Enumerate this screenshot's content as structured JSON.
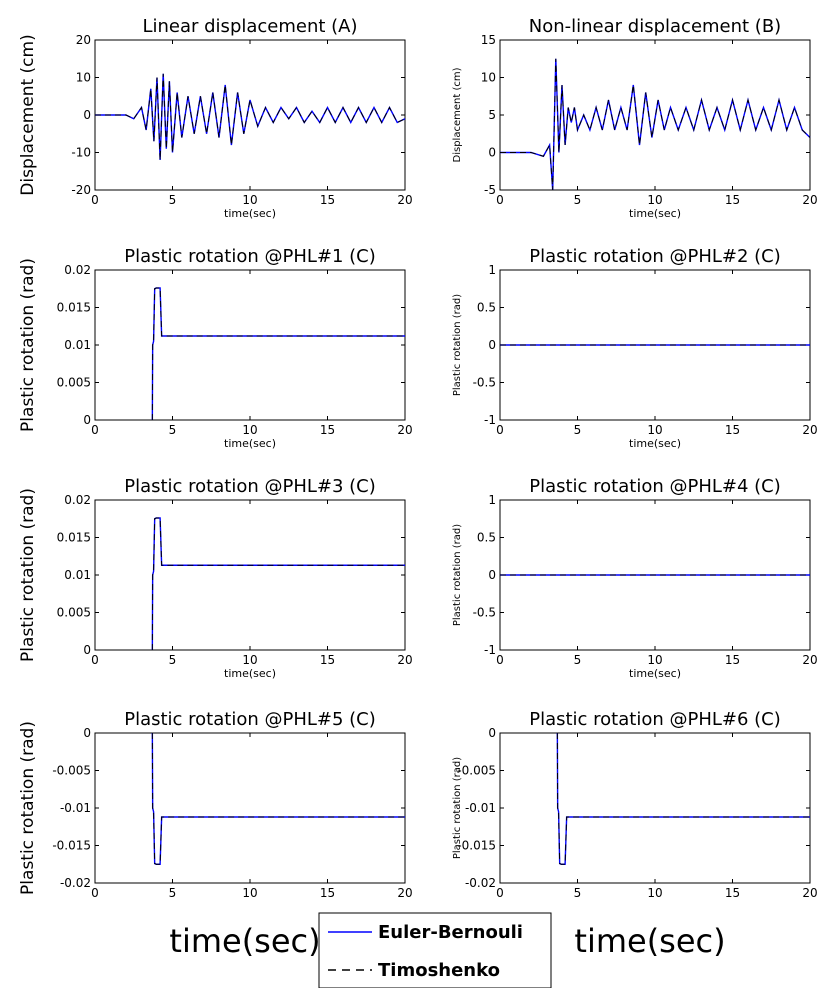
{
  "figure": {
    "bottom_xlabel_left": "time(sec)",
    "bottom_xlabel_right": "time(sec)"
  },
  "legend": {
    "entries": [
      {
        "name": "Euler-Bernouli",
        "color": "#0000ff",
        "style": "solid"
      },
      {
        "name": "Timoshenko",
        "color": "#000000",
        "style": "dashed"
      }
    ]
  },
  "chart_data": [
    {
      "type": "line",
      "title": "Linear displacement (A)",
      "xlabel": "time(sec)",
      "ylabel": "Displacement (cm)",
      "xlim": [
        0,
        20
      ],
      "ylim": [
        -20,
        20
      ],
      "xticks": [
        0,
        5,
        10,
        15,
        20
      ],
      "yticks": [
        -20,
        -10,
        0,
        10,
        20
      ],
      "xtick_labels": [
        "0",
        "5",
        "10",
        "15",
        "20"
      ],
      "ytick_labels": [
        "-20",
        "-10",
        "0",
        "10",
        "20"
      ],
      "series": [
        {
          "name": "Euler-Bernouli",
          "x": [
            0,
            1,
            2,
            2.5,
            3,
            3.3,
            3.6,
            3.8,
            4.0,
            4.2,
            4.4,
            4.6,
            4.8,
            5.0,
            5.3,
            5.6,
            6.0,
            6.4,
            6.8,
            7.2,
            7.6,
            8.0,
            8.4,
            8.8,
            9.2,
            9.6,
            10.0,
            10.5,
            11,
            11.5,
            12,
            12.5,
            13,
            13.5,
            14,
            14.5,
            15,
            15.5,
            16,
            16.5,
            17,
            17.5,
            18,
            18.5,
            19,
            19.5,
            20
          ],
          "y": [
            0,
            0,
            0,
            -1,
            2,
            -4,
            7,
            -7,
            10,
            -12,
            11,
            -9,
            9,
            -10,
            6,
            -6,
            5,
            -5,
            5,
            -5,
            6,
            -6,
            8,
            -8,
            6,
            -5,
            4,
            -3,
            2,
            -2,
            2,
            -1,
            2,
            -2,
            1,
            -2,
            2,
            -2,
            2,
            -2,
            2,
            -2,
            2,
            -2,
            2,
            -2,
            -1
          ]
        },
        {
          "name": "Timoshenko",
          "x": [
            0,
            1,
            2,
            2.5,
            3,
            3.3,
            3.6,
            3.8,
            4.0,
            4.2,
            4.4,
            4.6,
            4.8,
            5.0,
            5.3,
            5.6,
            6.0,
            6.4,
            6.8,
            7.2,
            7.6,
            8.0,
            8.4,
            8.8,
            9.2,
            9.6,
            10.0,
            10.5,
            11,
            11.5,
            12,
            12.5,
            13,
            13.5,
            14,
            14.5,
            15,
            15.5,
            16,
            16.5,
            17,
            17.5,
            18,
            18.5,
            19,
            19.5,
            20
          ],
          "y": [
            0,
            0,
            0,
            -1,
            2,
            -4,
            7,
            -7,
            10,
            -12,
            11,
            -9,
            9,
            -10,
            6,
            -6,
            5,
            -5,
            5,
            -5,
            6,
            -6,
            8,
            -8,
            6,
            -5,
            4,
            -3,
            2,
            -2,
            2,
            -1,
            2,
            -2,
            1,
            -2,
            2,
            -2,
            2,
            -2,
            2,
            -2,
            2,
            -2,
            2,
            -2,
            -1
          ]
        }
      ]
    },
    {
      "type": "line",
      "title": "Non-linear displacement (B)",
      "xlabel": "time(sec)",
      "ylabel": "Displacement (cm)",
      "xlim": [
        0,
        20
      ],
      "ylim": [
        -5,
        15
      ],
      "xticks": [
        0,
        5,
        10,
        15,
        20
      ],
      "yticks": [
        -5,
        0,
        5,
        10,
        15
      ],
      "xtick_labels": [
        "0",
        "5",
        "10",
        "15",
        "20"
      ],
      "ytick_labels": [
        "-5",
        "0",
        "5",
        "10",
        "15"
      ],
      "series": [
        {
          "name": "Euler-Bernouli",
          "x": [
            0,
            1,
            2,
            2.8,
            3.2,
            3.4,
            3.6,
            3.8,
            4.0,
            4.2,
            4.4,
            4.6,
            4.8,
            5.0,
            5.4,
            5.8,
            6.2,
            6.6,
            7.0,
            7.4,
            7.8,
            8.2,
            8.6,
            9.0,
            9.4,
            9.8,
            10.2,
            10.6,
            11,
            11.5,
            12,
            12.5,
            13,
            13.5,
            14,
            14.5,
            15,
            15.5,
            16,
            16.5,
            17,
            17.5,
            18,
            18.5,
            19,
            19.5,
            20
          ],
          "y": [
            0,
            0,
            0,
            -0.5,
            1,
            -5,
            12.5,
            0,
            9,
            1,
            6,
            4,
            6,
            3,
            5,
            3,
            6,
            3,
            7,
            3,
            6,
            3,
            9,
            1,
            8,
            2,
            7,
            3,
            6,
            3,
            6,
            3,
            7,
            3,
            6,
            3,
            7,
            3,
            7,
            3,
            6,
            3,
            7,
            3,
            6,
            3,
            2
          ]
        },
        {
          "name": "Timoshenko",
          "x": [
            0,
            1,
            2,
            2.8,
            3.2,
            3.4,
            3.6,
            3.8,
            4.0,
            4.2,
            4.4,
            4.6,
            4.8,
            5.0,
            5.4,
            5.8,
            6.2,
            6.6,
            7.0,
            7.4,
            7.8,
            8.2,
            8.6,
            9.0,
            9.4,
            9.8,
            10.2,
            10.6,
            11,
            11.5,
            12,
            12.5,
            13,
            13.5,
            14,
            14.5,
            15,
            15.5,
            16,
            16.5,
            17,
            17.5,
            18,
            18.5,
            19,
            19.5,
            20
          ],
          "y": [
            0,
            0,
            0,
            -0.5,
            1,
            -5,
            12.5,
            0,
            9,
            1,
            6,
            4,
            6,
            3,
            5,
            3,
            6,
            3,
            7,
            3,
            6,
            3,
            9,
            1,
            8,
            2,
            7,
            3,
            6,
            3,
            6,
            3,
            7,
            3,
            6,
            3,
            7,
            3,
            7,
            3,
            6,
            3,
            7,
            3,
            6,
            3,
            2
          ]
        }
      ]
    },
    {
      "type": "line",
      "title": "Plastic rotation @PHL#1 (C)",
      "xlabel": "time(sec)",
      "ylabel": "Plastic rotation (rad)",
      "xlim": [
        0,
        20
      ],
      "ylim": [
        0,
        0.02
      ],
      "xticks": [
        0,
        5,
        10,
        15,
        20
      ],
      "yticks": [
        0,
        0.005,
        0.01,
        0.015,
        0.02
      ],
      "xtick_labels": [
        "0",
        "5",
        "10",
        "15",
        "20"
      ],
      "ytick_labels": [
        "0",
        "0.005",
        "0.01",
        "0.015",
        "0.02"
      ],
      "series": [
        {
          "name": "Euler-Bernouli",
          "x": [
            3.7,
            3.72,
            3.78,
            3.85,
            3.95,
            4.2,
            4.3,
            4.4,
            20
          ],
          "y": [
            0,
            0.01,
            0.0105,
            0.0175,
            0.0176,
            0.0176,
            0.0112,
            0.0112,
            0.0112
          ]
        },
        {
          "name": "Timoshenko",
          "x": [
            3.7,
            3.72,
            3.78,
            3.85,
            3.95,
            4.2,
            4.3,
            4.4,
            20
          ],
          "y": [
            0,
            0.01,
            0.0105,
            0.0175,
            0.0176,
            0.0176,
            0.0112,
            0.0112,
            0.0112
          ]
        }
      ]
    },
    {
      "type": "line",
      "title": "Plastic rotation @PHL#2 (C)",
      "xlabel": "time(sec)",
      "ylabel": "Plastic rotation (rad)",
      "xlim": [
        0,
        20
      ],
      "ylim": [
        -1,
        1
      ],
      "xticks": [
        0,
        5,
        10,
        15,
        20
      ],
      "yticks": [
        -1,
        -0.5,
        0,
        0.5,
        1
      ],
      "xtick_labels": [
        "0",
        "5",
        "10",
        "15",
        "20"
      ],
      "ytick_labels": [
        "-1",
        "-0.5",
        "0",
        "0.5",
        "1"
      ],
      "series": [
        {
          "name": "Euler-Bernouli",
          "x": [
            0,
            20
          ],
          "y": [
            0,
            0
          ]
        },
        {
          "name": "Timoshenko",
          "x": [
            0,
            20
          ],
          "y": [
            0,
            0
          ]
        }
      ]
    },
    {
      "type": "line",
      "title": "Plastic rotation @PHL#3 (C)",
      "xlabel": "time(sec)",
      "ylabel": "Plastic rotation (rad)",
      "xlim": [
        0,
        20
      ],
      "ylim": [
        0,
        0.02
      ],
      "xticks": [
        0,
        5,
        10,
        15,
        20
      ],
      "yticks": [
        0,
        0.005,
        0.01,
        0.015,
        0.02
      ],
      "xtick_labels": [
        "0",
        "5",
        "10",
        "15",
        "20"
      ],
      "ytick_labels": [
        "0",
        "0.005",
        "0.01",
        "0.015",
        "0.02"
      ],
      "series": [
        {
          "name": "Euler-Bernouli",
          "x": [
            3.7,
            3.72,
            3.78,
            3.85,
            3.95,
            4.2,
            4.3,
            4.4,
            20
          ],
          "y": [
            0,
            0.01,
            0.0105,
            0.0175,
            0.0176,
            0.0176,
            0.0113,
            0.0113,
            0.0113
          ]
        },
        {
          "name": "Timoshenko",
          "x": [
            3.7,
            3.72,
            3.78,
            3.85,
            3.95,
            4.2,
            4.3,
            4.4,
            20
          ],
          "y": [
            0,
            0.01,
            0.0105,
            0.0175,
            0.0176,
            0.0176,
            0.0113,
            0.0113,
            0.0113
          ]
        }
      ]
    },
    {
      "type": "line",
      "title": "Plastic rotation @PHL#4 (C)",
      "xlabel": "time(sec)",
      "ylabel": "Plastic rotation (rad)",
      "xlim": [
        0,
        20
      ],
      "ylim": [
        -1,
        1
      ],
      "xticks": [
        0,
        5,
        10,
        15,
        20
      ],
      "yticks": [
        -1,
        -0.5,
        0,
        0.5,
        1
      ],
      "xtick_labels": [
        "0",
        "5",
        "10",
        "15",
        "20"
      ],
      "ytick_labels": [
        "-1",
        "-0.5",
        "0",
        "0.5",
        "1"
      ],
      "series": [
        {
          "name": "Euler-Bernouli",
          "x": [
            0,
            20
          ],
          "y": [
            0,
            0
          ]
        },
        {
          "name": "Timoshenko",
          "x": [
            0,
            20
          ],
          "y": [
            0,
            0
          ]
        }
      ]
    },
    {
      "type": "line",
      "title": "Plastic rotation @PHL#5 (C)",
      "xlabel": "",
      "ylabel": "Plastic rotation (rad)",
      "xlim": [
        0,
        20
      ],
      "ylim": [
        -0.02,
        0
      ],
      "xticks": [
        0,
        5,
        10,
        15,
        20
      ],
      "yticks": [
        -0.02,
        -0.015,
        -0.01,
        -0.005,
        0
      ],
      "xtick_labels": [
        "0",
        "5",
        "10",
        "15",
        "20"
      ],
      "ytick_labels": [
        "-0.02",
        "-0.015",
        "-0.01",
        "-0.005",
        "0"
      ],
      "series": [
        {
          "name": "Euler-Bernouli",
          "x": [
            3.7,
            3.72,
            3.78,
            3.85,
            3.95,
            4.2,
            4.3,
            4.4,
            20
          ],
          "y": [
            0,
            -0.01,
            -0.0105,
            -0.0174,
            -0.0175,
            -0.0175,
            -0.0112,
            -0.0112,
            -0.0112
          ]
        },
        {
          "name": "Timoshenko",
          "x": [
            3.7,
            3.72,
            3.78,
            3.85,
            3.95,
            4.2,
            4.3,
            4.4,
            20
          ],
          "y": [
            0,
            -0.01,
            -0.0105,
            -0.0174,
            -0.0175,
            -0.0175,
            -0.0112,
            -0.0112,
            -0.0112
          ]
        }
      ]
    },
    {
      "type": "line",
      "title": "Plastic rotation @PHL#6 (C)",
      "xlabel": "",
      "ylabel": "Plastic rotation (rad)",
      "xlim": [
        0,
        20
      ],
      "ylim": [
        -0.02,
        0
      ],
      "xticks": [
        0,
        5,
        10,
        15,
        20
      ],
      "yticks": [
        -0.02,
        -0.015,
        -0.01,
        -0.005,
        0
      ],
      "xtick_labels": [
        "0",
        "5",
        "10",
        "15",
        "20"
      ],
      "ytick_labels": [
        "-0.02",
        "-0.015",
        "-0.01",
        "-0.005",
        "0"
      ],
      "series": [
        {
          "name": "Euler-Bernouli",
          "x": [
            3.7,
            3.72,
            3.78,
            3.85,
            3.95,
            4.2,
            4.3,
            4.4,
            20
          ],
          "y": [
            0,
            -0.01,
            -0.0105,
            -0.0174,
            -0.0175,
            -0.0175,
            -0.0112,
            -0.0112,
            -0.0112
          ]
        },
        {
          "name": "Timoshenko",
          "x": [
            3.7,
            3.72,
            3.78,
            3.85,
            3.95,
            4.2,
            4.3,
            4.4,
            20
          ],
          "y": [
            0,
            -0.01,
            -0.0105,
            -0.0174,
            -0.0175,
            -0.0175,
            -0.0112,
            -0.0112,
            -0.0112
          ]
        }
      ]
    }
  ]
}
